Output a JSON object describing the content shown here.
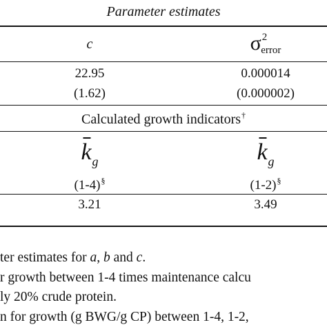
{
  "table": {
    "parameter_section_title": "Parameter estimates",
    "parameter_headers": {
      "c": "c",
      "sigma": "σ",
      "sigma_sup": "2",
      "sigma_sub": "error"
    },
    "parameter_values": {
      "c_estimate": "22.95",
      "c_se": "(1.62)",
      "sigma_estimate": "0.000014",
      "sigma_se": "(0.000002)"
    },
    "growth_section_title": "Calculated growth indicators",
    "growth_section_mark": "†",
    "growth_headers": {
      "k": "k",
      "k_sub": "g",
      "range1": "(1-4)",
      "range2": "(1-2)",
      "range_mark": "§"
    },
    "growth_values": {
      "v1": "3.21",
      "v2": "3.49"
    }
  },
  "footnotes": {
    "line1_a": "ter estimates for ",
    "line1_b": "a",
    "line1_c": ", ",
    "line1_d": "b",
    "line1_e": " and ",
    "line1_f": "c",
    "line1_g": ".",
    "line2": "r growth between 1-4 times maintenance calcu",
    "line3": "ly 20% crude protein.",
    "line4": "n for growth (g BWG/g CP) between 1-4, 1-2,"
  }
}
